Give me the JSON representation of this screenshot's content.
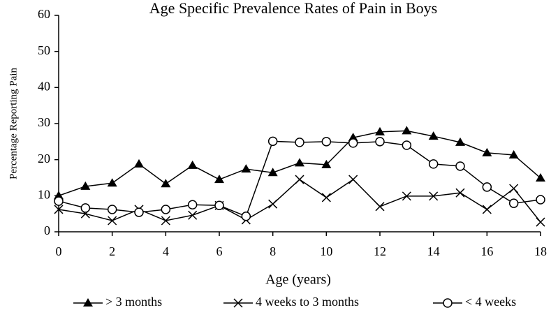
{
  "chart_data": {
    "type": "line",
    "title": "Age Specific Prevalence Rates of Pain in Boys",
    "x_label": "Age (years)",
    "y_label": "Percentage Reporting Pain",
    "x": [
      0,
      1,
      2,
      3,
      4,
      5,
      6,
      7,
      8,
      9,
      10,
      11,
      12,
      13,
      14,
      15,
      16,
      17,
      18
    ],
    "xlim": [
      0,
      18
    ],
    "xticks": [
      0,
      2,
      4,
      6,
      8,
      10,
      12,
      14,
      16,
      18
    ],
    "ylim": [
      0,
      60
    ],
    "yticks": [
      0,
      10,
      20,
      30,
      40,
      50,
      60
    ],
    "grid": false,
    "legend": "bottom",
    "series": [
      {
        "name": "> 3 months",
        "color": "#000000",
        "marker": "triangle",
        "values": [
          10,
          12.6,
          13.5,
          18.8,
          13.3,
          18.4,
          14.5,
          17.4,
          16.4,
          19.1,
          18.6,
          26.1,
          27.7,
          28.0,
          26.5,
          24.8,
          21.9,
          21.3,
          14.9
        ]
      },
      {
        "name": "4 weeks to 3 months",
        "color": "#000000",
        "marker": "x",
        "values": [
          6.2,
          5.0,
          3.1,
          6.2,
          3.1,
          4.6,
          7.3,
          3.3,
          7.7,
          14.5,
          9.5,
          14.5,
          7.0,
          9.9,
          9.9,
          10.8,
          6.2,
          12.0,
          2.7
        ]
      },
      {
        "name": "< 4 weeks",
        "color": "#000000",
        "marker": "circle",
        "values": [
          8.5,
          6.6,
          6.2,
          5.4,
          6.2,
          7.5,
          7.3,
          4.3,
          25.1,
          24.8,
          25.0,
          24.6,
          25.0,
          24.0,
          18.8,
          18.2,
          12.4,
          7.9,
          8.9
        ]
      }
    ]
  }
}
